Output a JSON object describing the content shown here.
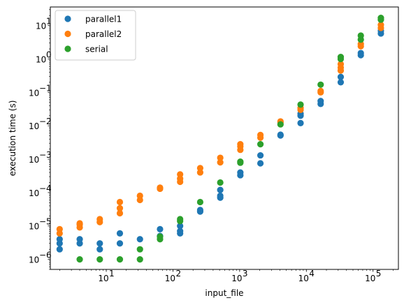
{
  "chart_data": {
    "type": "scatter",
    "xlabel": "input_file",
    "ylabel": "execution time (s)",
    "xscale": "log",
    "yscale": "log",
    "xlim": [
      1.45,
      240000
    ],
    "ylim": [
      5e-07,
      36
    ],
    "grid": false,
    "legend_position": "top-left",
    "x_tick_labels": [
      "10",
      "10",
      "10",
      "10",
      "10"
    ],
    "x_tick_exponents": [
      "1",
      "2",
      "3",
      "4",
      "5"
    ],
    "y_tick_labels": [
      "10",
      "10",
      "10",
      "10",
      "10",
      "10",
      "10",
      "10"
    ],
    "y_tick_exponents": [
      "−6",
      "−5",
      "−4",
      "−3",
      "−2",
      "−1",
      "0",
      "1"
    ],
    "series": [
      {
        "name": "parallel1",
        "color": "#1f77b4",
        "points": [
          [
            2,
            2e-06
          ],
          [
            2,
            3e-06
          ],
          [
            2,
            4e-06
          ],
          [
            4,
            3e-06
          ],
          [
            4,
            4e-06
          ],
          [
            8,
            2e-06
          ],
          [
            8,
            3e-06
          ],
          [
            16,
            3e-06
          ],
          [
            16,
            6e-06
          ],
          [
            32,
            4e-06
          ],
          [
            64,
            5e-06
          ],
          [
            64,
            8e-06
          ],
          [
            128,
            6e-06
          ],
          [
            128,
            7e-06
          ],
          [
            128,
            1e-05
          ],
          [
            256,
            2.7e-05
          ],
          [
            256,
            3e-05
          ],
          [
            512,
            7e-05
          ],
          [
            512,
            8e-05
          ],
          [
            512,
            0.00012
          ],
          [
            1024,
            0.00033
          ],
          [
            1024,
            0.0004
          ],
          [
            2048,
            0.00075
          ],
          [
            2048,
            0.0013
          ],
          [
            4096,
            0.0051
          ],
          [
            4096,
            0.0054
          ],
          [
            8192,
            0.012
          ],
          [
            8192,
            0.02
          ],
          [
            8192,
            0.023
          ],
          [
            16384,
            0.045
          ],
          [
            16384,
            0.055
          ],
          [
            32768,
            0.2
          ],
          [
            32768,
            0.29
          ],
          [
            65536,
            1.3
          ],
          [
            65536,
            1.5
          ],
          [
            131072,
            5.8
          ],
          [
            131072,
            7
          ]
        ]
      },
      {
        "name": "parallel2",
        "color": "#ff7f0e",
        "points": [
          [
            2,
            6e-06
          ],
          [
            2,
            8e-06
          ],
          [
            4,
            9e-06
          ],
          [
            4,
            1.1e-05
          ],
          [
            4,
            1.2e-05
          ],
          [
            8,
            1.3e-05
          ],
          [
            8,
            1.6e-05
          ],
          [
            16,
            2.4e-05
          ],
          [
            16,
            3.4e-05
          ],
          [
            16,
            5.2e-05
          ],
          [
            32,
            6e-05
          ],
          [
            32,
            8e-05
          ],
          [
            64,
            0.00013
          ],
          [
            64,
            0.00014
          ],
          [
            128,
            0.00021
          ],
          [
            128,
            0.00026
          ],
          [
            128,
            0.00035
          ],
          [
            256,
            0.0004
          ],
          [
            256,
            0.00054
          ],
          [
            512,
            0.0008
          ],
          [
            512,
            0.0011
          ],
          [
            1024,
            0.0019
          ],
          [
            1024,
            0.0024
          ],
          [
            1024,
            0.0028
          ],
          [
            2048,
            0.0044
          ],
          [
            2048,
            0.0053
          ],
          [
            4096,
            0.0125
          ],
          [
            4096,
            0.0135
          ],
          [
            8192,
            0.03
          ],
          [
            8192,
            0.034
          ],
          [
            16384,
            0.1
          ],
          [
            16384,
            0.11
          ],
          [
            32768,
            0.45
          ],
          [
            32768,
            0.55
          ],
          [
            32768,
            0.7
          ],
          [
            65536,
            2.4
          ],
          [
            65536,
            2.8
          ],
          [
            131072,
            8.5
          ],
          [
            131072,
            10.5
          ]
        ]
      },
      {
        "name": "serial",
        "color": "#2ca02c",
        "points": [
          [
            4,
            1e-06
          ],
          [
            8,
            1e-06
          ],
          [
            16,
            1e-06
          ],
          [
            32,
            1e-06
          ],
          [
            32,
            2e-06
          ],
          [
            64,
            4e-06
          ],
          [
            64,
            4.8e-06
          ],
          [
            128,
            1.4e-05
          ],
          [
            128,
            1.6e-05
          ],
          [
            256,
            5.2e-05
          ],
          [
            512,
            0.0002
          ],
          [
            1024,
            0.00078
          ],
          [
            1024,
            0.00084
          ],
          [
            2048,
            0.0028
          ],
          [
            4096,
            0.011
          ],
          [
            8192,
            0.043
          ],
          [
            16384,
            0.17
          ],
          [
            32768,
            1
          ],
          [
            32768,
            1.15
          ],
          [
            65536,
            3.8
          ],
          [
            65536,
            5
          ],
          [
            131072,
            15
          ],
          [
            131072,
            17
          ]
        ]
      }
    ]
  }
}
